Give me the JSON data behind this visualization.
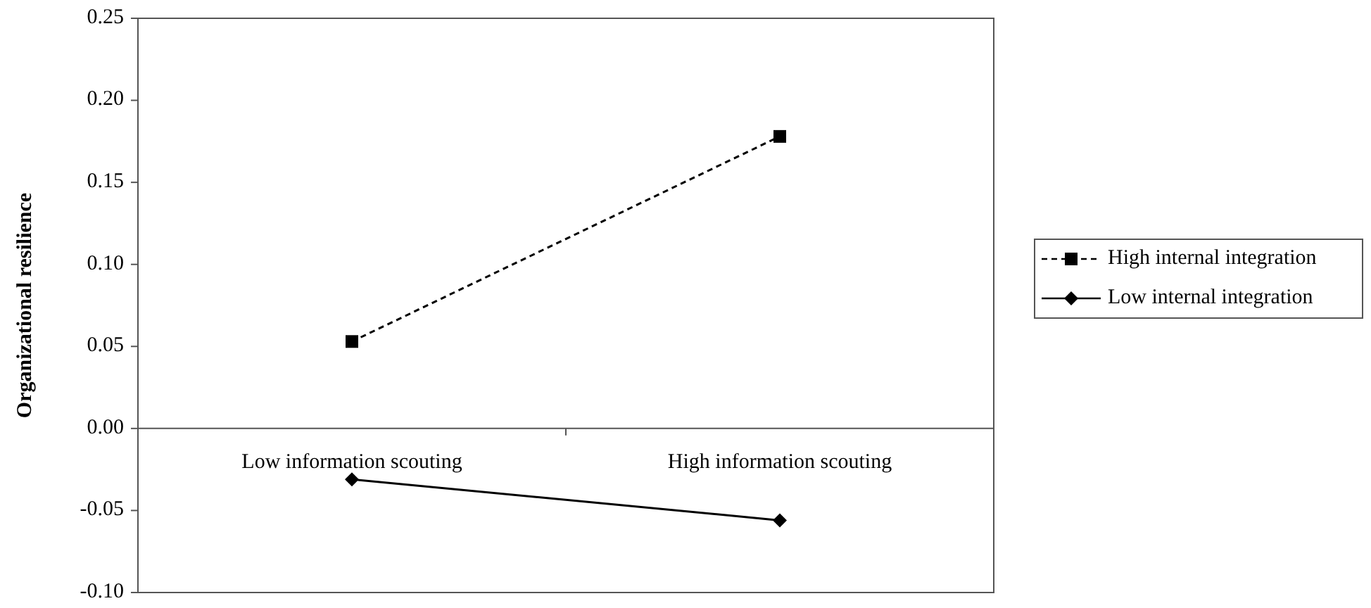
{
  "chart_data": {
    "type": "line",
    "ylabel": "Organizational resilience",
    "categories": [
      "Low information scouting",
      "High information scouting"
    ],
    "series": [
      {
        "name": "High internal integration",
        "color": "#000000",
        "values": [
          0.053,
          0.178
        ],
        "marker": "square",
        "line_style": "dashed"
      },
      {
        "name": "Low internal integration",
        "color": "#000000",
        "values": [
          -0.031,
          -0.056
        ],
        "marker": "diamond",
        "line_style": "solid"
      }
    ],
    "ylim": [
      -0.1,
      0.25
    ],
    "yticks": [
      {
        "value": -0.1,
        "label": "-0.10"
      },
      {
        "value": -0.05,
        "label": "-0.05"
      },
      {
        "value": 0,
        "label": "0.00"
      },
      {
        "value": 0.05,
        "label": "0.05"
      },
      {
        "value": 0.1,
        "label": "0.10"
      },
      {
        "value": 0.15,
        "label": "0.15"
      },
      {
        "value": 0.2,
        "label": "0.20"
      },
      {
        "value": 0.25,
        "label": "0.25"
      }
    ],
    "grid": false,
    "legend": "right"
  }
}
